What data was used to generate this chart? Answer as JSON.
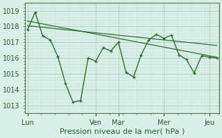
{
  "xlabel": "Pression niveau de la mer( hPa )",
  "bg_color": "#d8f0e8",
  "plot_bg_color": "#d8eee8",
  "grid_major_color": "#b0ccb8",
  "grid_minor_color": "#c8ddd0",
  "line_color": "#2d6e2d",
  "ylim": [
    1012.5,
    1019.5
  ],
  "yticks": [
    1013,
    1014,
    1015,
    1016,
    1017,
    1018,
    1019
  ],
  "x_day_labels": [
    "Lun",
    "Ven",
    "Mar",
    "Mer",
    "Jeu"
  ],
  "x_day_positions": [
    0.0,
    9.0,
    12.0,
    18.0,
    24.0
  ],
  "xlim": [
    -0.3,
    25.3
  ],
  "data_x": [
    0,
    1,
    2,
    3,
    4,
    5,
    6,
    7,
    8,
    9,
    10,
    11,
    12,
    13,
    14,
    15,
    16,
    17,
    18,
    19,
    20,
    21,
    22,
    23,
    24,
    25
  ],
  "data_y": [
    1017.8,
    1018.9,
    1017.4,
    1017.15,
    1016.1,
    1014.4,
    1013.2,
    1013.3,
    1016.0,
    1015.8,
    1016.65,
    1016.45,
    1017.0,
    1015.1,
    1014.8,
    1016.2,
    1017.15,
    1017.5,
    1017.25,
    1017.45,
    1016.2,
    1015.9,
    1015.05,
    1016.15,
    1016.05,
    1016.0
  ],
  "trend1_x": [
    0,
    25
  ],
  "trend1_y": [
    1018.35,
    1016.05
  ],
  "trend2_x": [
    0,
    25
  ],
  "trend2_y": [
    1018.05,
    1016.8
  ],
  "tick_fontsize": 7,
  "xlabel_fontsize": 8,
  "label_color": "#2d5a2d",
  "spine_color": "#4a7a4a",
  "minor_per_major": 5
}
